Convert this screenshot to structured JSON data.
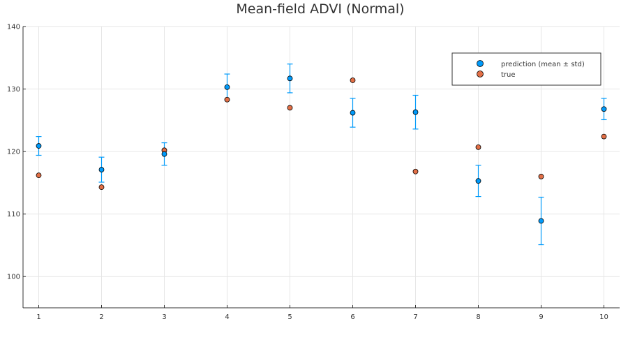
{
  "chart_data": {
    "type": "scatter",
    "title": "Mean-field ADVI (Normal)",
    "xlabel": "",
    "ylabel": "",
    "x": [
      1,
      2,
      3,
      4,
      5,
      6,
      7,
      8,
      9,
      10
    ],
    "xlim": [
      0.75,
      10.25
    ],
    "ylim": [
      95,
      140
    ],
    "xticks": [
      1,
      2,
      3,
      4,
      5,
      6,
      7,
      8,
      9,
      10
    ],
    "yticks": [
      100,
      110,
      120,
      130,
      140
    ],
    "grid": true,
    "legend_position": "top-right",
    "series": [
      {
        "name": "prediction (mean ± std)",
        "color": "#009AFA",
        "values": [
          120.9,
          117.1,
          119.6,
          130.3,
          131.7,
          126.2,
          126.3,
          115.3,
          108.9,
          126.8
        ],
        "std": [
          1.5,
          2.0,
          1.8,
          2.1,
          2.3,
          2.3,
          2.7,
          2.5,
          3.8,
          1.7
        ]
      },
      {
        "name": "true",
        "color": "#E26F46",
        "values": [
          116.2,
          114.3,
          120.2,
          128.3,
          127.0,
          131.4,
          116.8,
          120.7,
          116.0,
          122.4
        ]
      }
    ]
  }
}
